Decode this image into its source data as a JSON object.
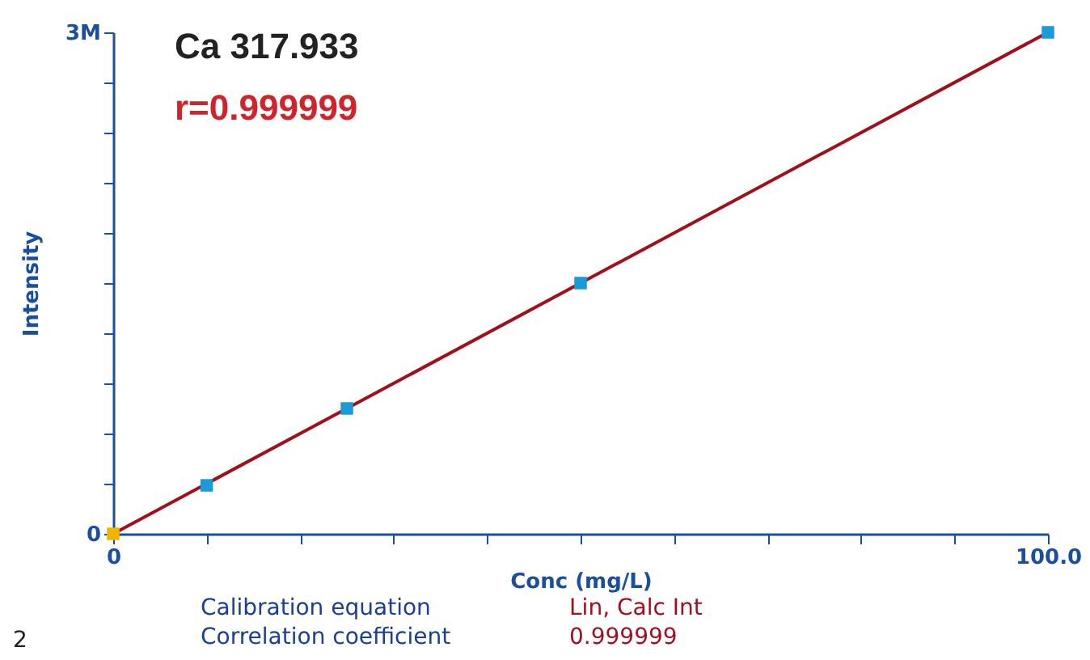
{
  "chart_data": {
    "type": "scatter",
    "title": "Ca 317.933",
    "subtitle": "r=0.999999",
    "xlabel": "Conc (mg/L)",
    "ylabel": "Intensity",
    "annotations": [
      "Calibration equation",
      "Lin, Calc Int",
      "Correlation coefficient",
      "0.999999",
      "2"
    ],
    "xlim": [
      0,
      100
    ],
    "xticks": [
      0,
      {
        "value": 10,
        "label": null
      },
      {
        "value": 20,
        "label": null
      },
      {
        "value": 30,
        "label": null
      },
      {
        "value": 40,
        "label": null
      },
      {
        "value": 50,
        "label": null
      },
      {
        "value": 60,
        "label": null
      },
      {
        "value": 70,
        "label": null
      },
      {
        "value": 80,
        "label": null
      },
      {
        "value": 90,
        "label": null
      },
      {
        "value": 100,
        "label": "100.0"
      }
    ],
    "ylim": [
      0,
      3000000
    ],
    "yticks": [
      0,
      {
        "value": 300000,
        "label": null
      },
      {
        "value": 600000,
        "label": null
      },
      {
        "value": 900000,
        "label": null
      },
      {
        "value": 1200000,
        "label": null
      },
      {
        "value": 1500000,
        "label": null
      },
      {
        "value": 1800000,
        "label": null
      },
      {
        "value": 2100000,
        "label": null
      },
      {
        "value": 2400000,
        "label": null
      },
      {
        "value": 2700000,
        "label": null
      },
      {
        "value": 3000000,
        "label": "3M"
      }
    ],
    "grid": false,
    "series": [
      {
        "type": "line",
        "color": "#a0101c",
        "line_style": "solid",
        "marker": "none",
        "x": [
          0,
          100
        ],
        "values": [
          0,
          3000000
        ]
      },
      {
        "type": "scatter",
        "marker": "square",
        "colors": [
          "#f0b400",
          "#1a9ad6",
          "#1a9ad6",
          "#1a9ad6",
          "#1a9ad6"
        ],
        "x": [
          0,
          10,
          25,
          50,
          100
        ],
        "values": [
          0,
          290000,
          750000,
          1500000,
          3000000
        ]
      }
    ]
  }
}
